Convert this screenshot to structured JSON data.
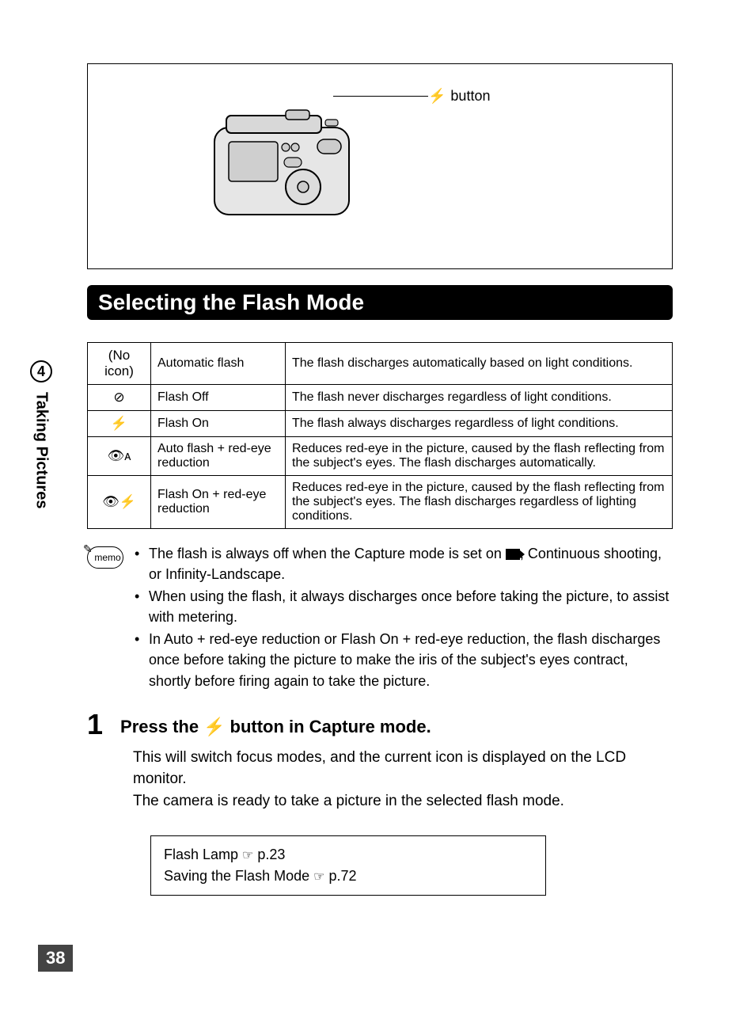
{
  "page": {
    "number": "38",
    "chapter_num": "4",
    "side_title": "Taking Pictures"
  },
  "diagram": {
    "button_label": "button",
    "flash_glyph": "⚡"
  },
  "section_title": "Selecting the Flash Mode",
  "flash_table": {
    "rows": [
      {
        "icon_text": "(No icon)",
        "icon_glyph": "",
        "name": "Automatic flash",
        "desc": "The flash discharges automatically based on light conditions."
      },
      {
        "icon_text": "",
        "icon_glyph": "⊘",
        "name": "Flash Off",
        "desc": "The flash never discharges regardless of light conditions."
      },
      {
        "icon_text": "",
        "icon_glyph": "⚡",
        "name": "Flash On",
        "desc": "The flash always discharges regardless of light conditions."
      },
      {
        "icon_text": "",
        "icon_glyph": "👁ᴀ",
        "name": "Auto flash + red-eye reduction",
        "desc": "Reduces red-eye in the picture, caused by the flash reflecting from the subject's eyes. The flash discharges automatically."
      },
      {
        "icon_text": "",
        "icon_glyph": "👁⚡",
        "name": "Flash On + red-eye reduction",
        "desc": "Reduces red-eye in the picture, caused by the flash reflecting from the subject's eyes.\nThe flash discharges regardless of lighting conditions."
      }
    ]
  },
  "memo": {
    "label": "memo",
    "bullets": [
      {
        "pre": "The flash is always off when the Capture mode is set on ",
        "icon": "movie",
        "post": ", Continuous shooting, or Infinity-Landscape."
      },
      {
        "pre": "When using the flash, it always discharges once before taking the picture, to assist with metering.",
        "icon": "",
        "post": ""
      },
      {
        "pre": "In Auto + red-eye reduction or Flash On + red-eye reduction, the flash discharges once before taking the picture to make the iris of the subject's eyes contract, shortly before firing again to take the picture.",
        "icon": "",
        "post": ""
      }
    ]
  },
  "step": {
    "num": "1",
    "heading_pre": "Press the ",
    "flash_glyph": "⚡",
    "heading_post": " button in Capture mode.",
    "body": "This will switch focus modes, and the current icon is displayed on the LCD monitor.\nThe camera is ready to take a picture in the selected flash mode."
  },
  "refs": {
    "hand_glyph": "☞",
    "line1_pre": "Flash Lamp ",
    "line1_page": "p.23",
    "line2_pre": "Saving the Flash Mode ",
    "line2_page": "p.72"
  },
  "colors": {
    "banner_bg": "#000000",
    "banner_fg": "#ffffff",
    "border": "#000000",
    "text": "#000000"
  }
}
